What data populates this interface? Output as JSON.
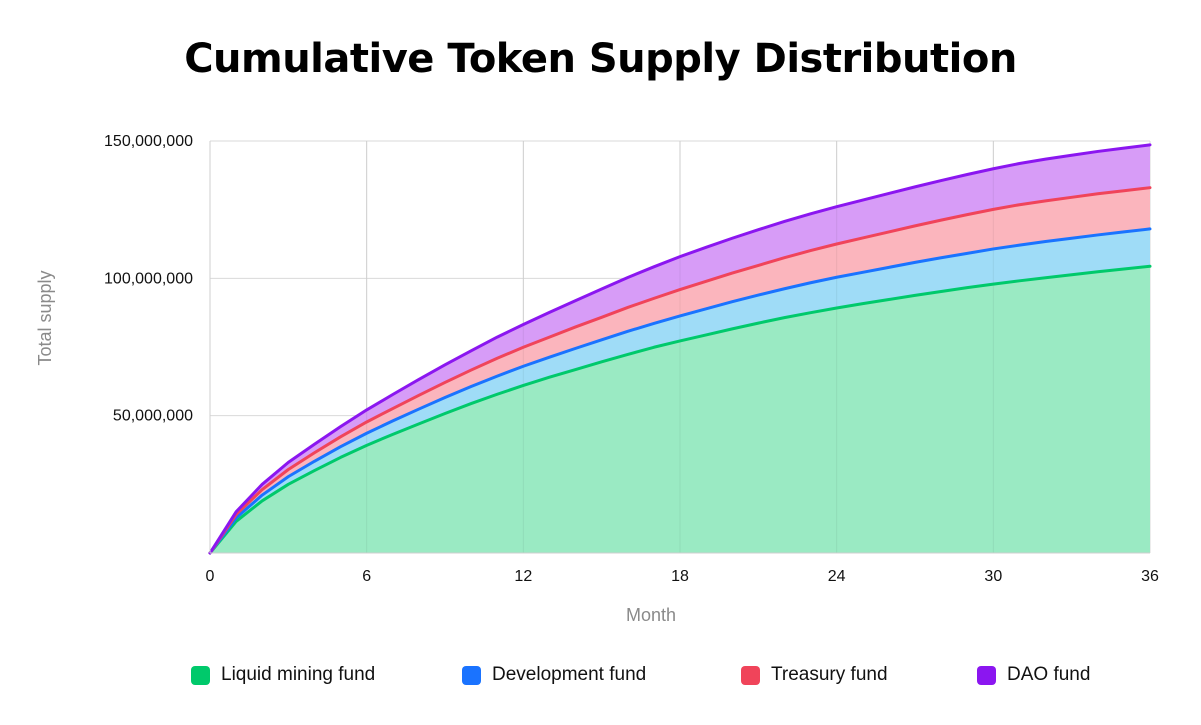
{
  "chart_data": {
    "type": "area",
    "stacked": true,
    "title": "Cumulative Token Supply Distribution",
    "xlabel": "Month",
    "ylabel": "Total supply",
    "xlim": [
      0,
      36
    ],
    "ylim": [
      0,
      150000000
    ],
    "x_ticks": [
      0,
      6,
      12,
      18,
      24,
      30,
      36
    ],
    "x_tick_labels": [
      "0",
      "6",
      "12",
      "18",
      "24",
      "30",
      "36"
    ],
    "y_ticks": [
      50000000,
      100000000,
      150000000
    ],
    "y_tick_labels": [
      "50,000,000",
      "100,000,000",
      "150,000,000"
    ],
    "grid": true,
    "legend_position": "bottom",
    "x": [
      0,
      1,
      2,
      3,
      4,
      5,
      6,
      7,
      8,
      9,
      10,
      11,
      12,
      13,
      14,
      15,
      16,
      17,
      18,
      19,
      20,
      21,
      22,
      23,
      24,
      25,
      26,
      27,
      28,
      29,
      30,
      31,
      32,
      33,
      34,
      35,
      36
    ],
    "series": [
      {
        "name": "Liquid mining fund",
        "color": "#00c96b",
        "fill": "#9aeac3",
        "values": [
          0,
          11500000,
          19000000,
          25000000,
          30000000,
          34800000,
          39200000,
          43200000,
          47000000,
          50800000,
          54400000,
          57800000,
          61000000,
          64000000,
          66800000,
          69600000,
          72300000,
          74900000,
          77200000,
          79400000,
          81600000,
          83700000,
          85700000,
          87500000,
          89200000,
          90800000,
          92300000,
          93800000,
          95200000,
          96600000,
          97900000,
          99100000,
          100200000,
          101300000,
          102400000,
          103400000,
          104400000
        ]
      },
      {
        "name": "Development fund",
        "color": "#1a73ff",
        "fill": "#9fdcf7",
        "values": [
          0,
          1300000,
          2100000,
          2800000,
          3400000,
          3900000,
          4400000,
          4900000,
          5400000,
          5800000,
          6200000,
          6600000,
          7000000,
          7300000,
          7700000,
          8000000,
          8400000,
          8700000,
          9100000,
          9500000,
          9900000,
          10200000,
          10500000,
          10900000,
          11200000,
          11400000,
          11700000,
          12000000,
          12300000,
          12500000,
          12800000,
          13000000,
          13200000,
          13300000,
          13400000,
          13500000,
          13600000
        ]
      },
      {
        "name": "Treasury fund",
        "color": "#f0445a",
        "fill": "#fbb5bd",
        "values": [
          0,
          1200000,
          2000000,
          2600000,
          3100000,
          3600000,
          4100000,
          4500000,
          5000000,
          5500000,
          6000000,
          6500000,
          6900000,
          7300000,
          7800000,
          8200000,
          8700000,
          9100000,
          9600000,
          10000000,
          10400000,
          10800000,
          11300000,
          11700000,
          12100000,
          12500000,
          12900000,
          13300000,
          13700000,
          14100000,
          14400000,
          14700000,
          14800000,
          14900000,
          15000000,
          15000000,
          15000000
        ]
      },
      {
        "name": "DAO fund",
        "color": "#8b16f0",
        "fill": "#d79cf7",
        "values": [
          0,
          1000000,
          1900000,
          2600000,
          3100000,
          3700000,
          4400000,
          5100000,
          5800000,
          6400000,
          7000000,
          7700000,
          8300000,
          9000000,
          9600000,
          10300000,
          10900000,
          11500000,
          12000000,
          12400000,
          12700000,
          13000000,
          13200000,
          13400000,
          13600000,
          13800000,
          14000000,
          14200000,
          14400000,
          14600000,
          14800000,
          15000000,
          15200000,
          15300000,
          15400000,
          15500000,
          15600000
        ]
      }
    ]
  },
  "colors": {
    "grid": "#dadada",
    "axis": "#cfcfcf"
  }
}
